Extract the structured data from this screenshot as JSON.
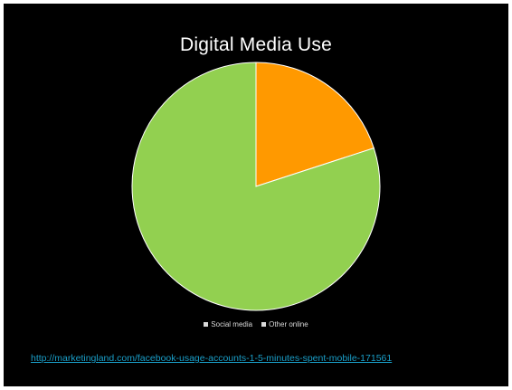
{
  "slide": {
    "source_link": "http://marketingland.com/facebook-usage-accounts-1-5-minutes-spent-mobile-171561"
  },
  "chart_data": {
    "type": "pie",
    "title": "Digital Media Use",
    "categories": [
      "Social media",
      "Other online"
    ],
    "values": [
      20,
      80
    ],
    "colors": [
      "#ff9900",
      "#92d050"
    ],
    "legend": "bottom",
    "legend_labels": [
      "Social media",
      "Other online"
    ]
  }
}
